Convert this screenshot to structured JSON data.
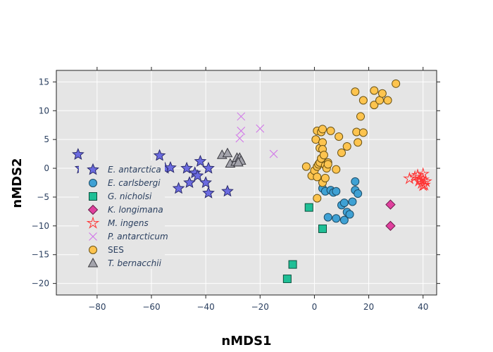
{
  "chart_data": {
    "type": "scatter",
    "xlabel": "nMDS1",
    "ylabel": "nMDS2",
    "xlim": [
      -95,
      45
    ],
    "ylim": [
      -22,
      17
    ],
    "x_ticks": [
      -80,
      -60,
      -40,
      -20,
      0,
      20,
      40
    ],
    "y_ticks": [
      -20,
      -15,
      -10,
      -5,
      0,
      5,
      10,
      15
    ],
    "grid": true,
    "background": "#e5e5e5",
    "legend_position": "left-middle",
    "series": [
      {
        "name": "E. antarctica",
        "italic": true,
        "marker": "star",
        "color": "#6b6be0",
        "edge": "#2a2a6a",
        "points": [
          [
            -87,
            2.4
          ],
          [
            -86,
            0
          ],
          [
            -57,
            2.2
          ],
          [
            -55,
            0
          ],
          [
            -53,
            0.1
          ],
          [
            -50,
            -3.5
          ],
          [
            -47,
            0
          ],
          [
            -46,
            -2.5
          ],
          [
            -44,
            -0.8
          ],
          [
            -43,
            -1.3
          ],
          [
            -42,
            1.2
          ],
          [
            -40,
            -2.5
          ],
          [
            -39,
            0
          ],
          [
            -39,
            -4.3
          ],
          [
            -32,
            -4
          ]
        ]
      },
      {
        "name": "E. carlsbergi",
        "italic": true,
        "marker": "circle",
        "color": "#3fa1d4",
        "edge": "#1c4c66",
        "points": [
          [
            3,
            -3.5
          ],
          [
            4,
            -4
          ],
          [
            5,
            -8.5
          ],
          [
            6,
            -3.8
          ],
          [
            7,
            -4.2
          ],
          [
            8,
            -8.7
          ],
          [
            8,
            -4
          ],
          [
            10,
            -6.4
          ],
          [
            11,
            -9
          ],
          [
            11,
            -6
          ],
          [
            12,
            -7.6
          ],
          [
            13,
            -8
          ],
          [
            14,
            -5.8
          ],
          [
            15,
            -2.3
          ],
          [
            15,
            -3.8
          ],
          [
            16,
            -4.4
          ]
        ]
      },
      {
        "name": "G. nicholsi",
        "italic": true,
        "marker": "square",
        "color": "#1fbf96",
        "edge": "#0b4f3c",
        "points": [
          [
            -2,
            -6.8
          ],
          [
            3,
            -10.5
          ],
          [
            -8,
            -16.7
          ],
          [
            -10,
            -19.2
          ]
        ]
      },
      {
        "name": "K. longimana",
        "italic": true,
        "marker": "diamond",
        "color": "#e0409e",
        "edge": "#6a1e4a",
        "points": [
          [
            28,
            -6.3
          ],
          [
            28,
            -10
          ]
        ]
      },
      {
        "name": "M. ingens",
        "italic": true,
        "marker": "star-open",
        "color": "#ff3333",
        "edge": "#ff3333",
        "points": [
          [
            35,
            -1.8
          ],
          [
            37,
            -1.5
          ],
          [
            38,
            -1.2
          ],
          [
            38.5,
            -2.2
          ],
          [
            39,
            -1.8
          ],
          [
            39.5,
            -2.6
          ],
          [
            40,
            -1
          ],
          [
            40,
            -2
          ],
          [
            40.5,
            -2.9
          ],
          [
            41,
            -2.3
          ],
          [
            40,
            -3
          ]
        ]
      },
      {
        "name": "P. antarcticum",
        "italic": true,
        "marker": "x-thin",
        "color": "#d070e8",
        "edge": "#d070e8",
        "points": [
          [
            -27,
            9
          ],
          [
            -27,
            6.5
          ],
          [
            -27.5,
            5.2
          ],
          [
            -20,
            6.9
          ],
          [
            -15,
            2.5
          ]
        ]
      },
      {
        "name": "SES",
        "italic": false,
        "marker": "circle",
        "color": "#fdc44f",
        "edge": "#6b5213",
        "points": [
          [
            -3,
            0.3
          ],
          [
            -1,
            -1.3
          ],
          [
            0,
            -0.4
          ],
          [
            0.5,
            5
          ],
          [
            1,
            6.5
          ],
          [
            1,
            -1.5
          ],
          [
            1,
            0.3
          ],
          [
            1,
            -5.2
          ],
          [
            1.5,
            0.7
          ],
          [
            2,
            1
          ],
          [
            2,
            3.5
          ],
          [
            2.5,
            6.3
          ],
          [
            2.5,
            1.7
          ],
          [
            3,
            6.8
          ],
          [
            3,
            4.5
          ],
          [
            3,
            3.3
          ],
          [
            3,
            -2.5
          ],
          [
            3.5,
            2.3
          ],
          [
            4,
            0.5
          ],
          [
            4,
            -1.7
          ],
          [
            4.5,
            0
          ],
          [
            5,
            1
          ],
          [
            5,
            0.7
          ],
          [
            6,
            6.5
          ],
          [
            8,
            -0.2
          ],
          [
            9,
            5.5
          ],
          [
            10,
            2.7
          ],
          [
            12,
            3.8
          ],
          [
            15,
            13.3
          ],
          [
            15.5,
            6.3
          ],
          [
            16,
            4.5
          ],
          [
            17,
            9
          ],
          [
            18,
            6.2
          ],
          [
            18,
            11.8
          ],
          [
            22,
            13.5
          ],
          [
            22,
            11
          ],
          [
            24,
            11.8
          ],
          [
            25,
            13
          ],
          [
            27,
            11.8
          ],
          [
            30,
            14.7
          ]
        ]
      },
      {
        "name": "T. bernacchii",
        "italic": true,
        "marker": "triangle-up",
        "color": "#a4a4ac",
        "edge": "#3a3a40",
        "points": [
          [
            -34,
            2.3
          ],
          [
            -32,
            2.6
          ],
          [
            -31,
            0.8
          ],
          [
            -29,
            1.1
          ],
          [
            -28.5,
            1.8
          ],
          [
            -27.5,
            1.8
          ],
          [
            -27,
            1.3
          ],
          [
            -28,
            1
          ]
        ]
      }
    ]
  }
}
